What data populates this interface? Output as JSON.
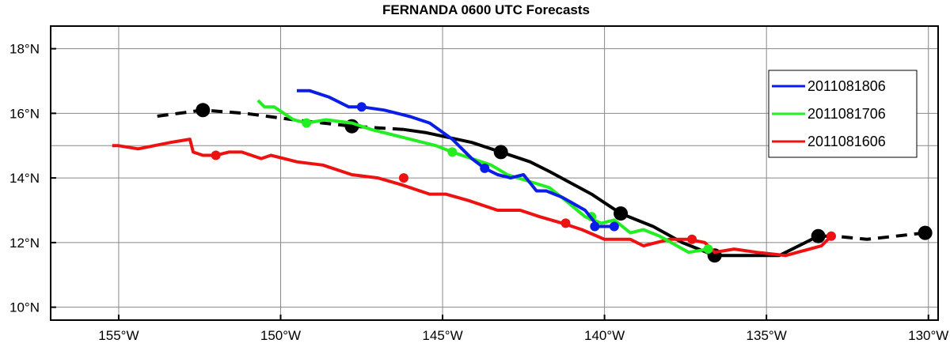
{
  "chart_data": {
    "type": "line",
    "title": "FERNANDA 0600 UTC Forecasts",
    "xlabel": "",
    "ylabel": "",
    "xlim": [
      -157.1,
      -129.7
    ],
    "ylim": [
      9.6,
      18.7
    ],
    "x_ticks": [
      {
        "value": -155,
        "label": "155°W"
      },
      {
        "value": -150,
        "label": "150°W"
      },
      {
        "value": -145,
        "label": "145°W"
      },
      {
        "value": -140,
        "label": "140°W"
      },
      {
        "value": -135,
        "label": "135°W"
      },
      {
        "value": -130,
        "label": "130°W"
      }
    ],
    "y_ticks": [
      {
        "value": 10,
        "label": "10°N"
      },
      {
        "value": 12,
        "label": "12°N"
      },
      {
        "value": 14,
        "label": "14°N"
      },
      {
        "value": 16,
        "label": "16°N"
      },
      {
        "value": 18,
        "label": "18°N"
      }
    ],
    "grid": true,
    "legend_position": "right",
    "observed_track": {
      "color": "#000000",
      "points": [
        [
          -130.1,
          12.3
        ],
        [
          -131.9,
          12.1
        ],
        [
          -132.9,
          12.2
        ],
        [
          -133.4,
          12.2
        ],
        [
          -134.6,
          11.6
        ],
        [
          -136.6,
          11.6
        ],
        [
          -137.6,
          12.0
        ],
        [
          -138.5,
          12.5
        ],
        [
          -139.5,
          12.9
        ],
        [
          -140.4,
          13.5
        ],
        [
          -141.7,
          14.2
        ],
        [
          -142.3,
          14.5
        ],
        [
          -143.2,
          14.8
        ],
        [
          -144.1,
          15.1
        ],
        [
          -145.5,
          15.4
        ],
        [
          -146.2,
          15.5
        ],
        [
          -147.8,
          15.6
        ],
        [
          -149.6,
          15.8
        ],
        [
          -151.1,
          16.0
        ],
        [
          -152.4,
          16.1
        ],
        [
          -153.9,
          15.9
        ]
      ],
      "solid_from_index": 2,
      "solid_to_index": 15,
      "markers": [
        [
          -130.1,
          12.3
        ],
        [
          -133.4,
          12.2
        ],
        [
          -136.6,
          11.6
        ],
        [
          -139.5,
          12.9
        ],
        [
          -143.2,
          14.8
        ],
        [
          -147.8,
          15.6
        ],
        [
          -152.4,
          16.1
        ]
      ]
    },
    "series": [
      {
        "name": "2011081806",
        "color": "#0a1ee6",
        "points": [
          [
            -139.7,
            12.5
          ],
          [
            -140.2,
            12.5
          ],
          [
            -140.6,
            13.0
          ],
          [
            -141.3,
            13.4
          ],
          [
            -141.8,
            13.6
          ],
          [
            -142.1,
            13.6
          ],
          [
            -142.5,
            14.1
          ],
          [
            -142.9,
            14.0
          ],
          [
            -143.3,
            14.1
          ],
          [
            -143.7,
            14.3
          ],
          [
            -144.1,
            14.6
          ],
          [
            -144.7,
            15.2
          ],
          [
            -145.4,
            15.7
          ],
          [
            -146.0,
            15.9
          ],
          [
            -146.8,
            16.1
          ],
          [
            -147.5,
            16.2
          ],
          [
            -147.9,
            16.2
          ],
          [
            -148.5,
            16.5
          ],
          [
            -149.1,
            16.7
          ],
          [
            -149.5,
            16.7
          ]
        ],
        "markers": [
          [
            -139.7,
            12.5
          ],
          [
            -140.3,
            12.5
          ],
          [
            -143.7,
            14.3
          ],
          [
            -147.5,
            16.2
          ]
        ]
      },
      {
        "name": "2011081706",
        "color": "#22ee22",
        "points": [
          [
            -136.8,
            11.8
          ],
          [
            -137.4,
            11.7
          ],
          [
            -138.3,
            12.2
          ],
          [
            -138.8,
            12.4
          ],
          [
            -139.2,
            12.3
          ],
          [
            -139.7,
            12.7
          ],
          [
            -140.1,
            12.6
          ],
          [
            -140.6,
            12.8
          ],
          [
            -141.2,
            13.3
          ],
          [
            -141.7,
            13.7
          ],
          [
            -143.0,
            14.1
          ],
          [
            -143.5,
            14.4
          ],
          [
            -144.7,
            14.8
          ],
          [
            -145.2,
            15.0
          ],
          [
            -146.4,
            15.3
          ],
          [
            -147.2,
            15.5
          ],
          [
            -147.8,
            15.7
          ],
          [
            -148.6,
            15.8
          ],
          [
            -149.2,
            15.7
          ],
          [
            -149.6,
            15.8
          ],
          [
            -149.9,
            16.0
          ],
          [
            -150.2,
            16.2
          ],
          [
            -150.5,
            16.2
          ],
          [
            -150.7,
            16.4
          ]
        ],
        "markers": [
          [
            -136.8,
            11.8
          ],
          [
            -140.4,
            12.8
          ],
          [
            -144.7,
            14.8
          ],
          [
            -149.2,
            15.7
          ]
        ]
      },
      {
        "name": "2011081606",
        "color": "#ee1111",
        "points": [
          [
            -133.0,
            12.2
          ],
          [
            -133.3,
            11.9
          ],
          [
            -134.4,
            11.6
          ],
          [
            -135.3,
            11.7
          ],
          [
            -136.0,
            11.8
          ],
          [
            -136.6,
            11.7
          ],
          [
            -136.9,
            12.0
          ],
          [
            -137.4,
            12.1
          ],
          [
            -138.0,
            12.1
          ],
          [
            -138.8,
            11.9
          ],
          [
            -139.2,
            12.1
          ],
          [
            -140.0,
            12.1
          ],
          [
            -140.7,
            12.4
          ],
          [
            -141.3,
            12.6
          ],
          [
            -142.0,
            12.8
          ],
          [
            -142.6,
            13.0
          ],
          [
            -143.3,
            13.0
          ],
          [
            -144.2,
            13.3
          ],
          [
            -144.9,
            13.5
          ],
          [
            -145.4,
            13.5
          ],
          [
            -146.3,
            13.8
          ],
          [
            -147.0,
            14.0
          ],
          [
            -147.8,
            14.1
          ],
          [
            -148.7,
            14.4
          ],
          [
            -149.5,
            14.5
          ],
          [
            -149.9,
            14.6
          ],
          [
            -150.3,
            14.7
          ],
          [
            -150.6,
            14.6
          ],
          [
            -151.2,
            14.8
          ],
          [
            -151.6,
            14.8
          ],
          [
            -152.0,
            14.7
          ],
          [
            -152.4,
            14.7
          ],
          [
            -152.7,
            14.8
          ],
          [
            -152.8,
            15.2
          ],
          [
            -153.4,
            15.1
          ],
          [
            -154.4,
            14.9
          ],
          [
            -155.0,
            15.0
          ],
          [
            -155.2,
            15.0
          ]
        ],
        "markers": [
          [
            -133.0,
            12.2
          ],
          [
            -137.3,
            12.1
          ],
          [
            -141.2,
            12.6
          ],
          [
            -146.2,
            14.0
          ],
          [
            -152.0,
            14.7
          ]
        ]
      }
    ]
  }
}
